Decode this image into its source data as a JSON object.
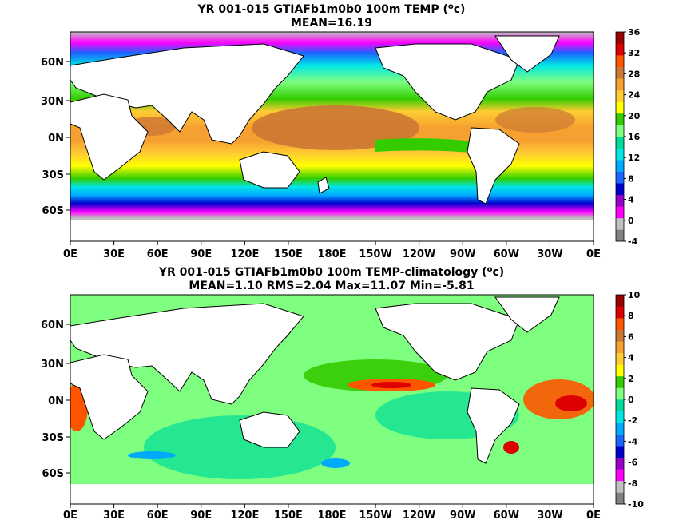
{
  "panels": [
    {
      "title_line1": "YR 001-015 GTIAFb1m0b0 100m TEMP (",
      "title_sup": "o",
      "title_line1_end": "c)",
      "title_line2": "MEAN=16.19",
      "lon_ticks": [
        "0E",
        "30E",
        "60E",
        "90E",
        "120E",
        "150E",
        "180E",
        "150W",
        "120W",
        "90W",
        "60W",
        "30W",
        "0E"
      ],
      "lat_ticks": [
        "60N",
        "30N",
        "0N",
        "30S",
        "60S"
      ],
      "colorbar": {
        "labels": [
          "36",
          "32",
          "28",
          "24",
          "20",
          "16",
          "12",
          "8",
          "4",
          "0",
          "-4"
        ],
        "colors": [
          "#808080",
          "#c0c0c0",
          "#ff00ff",
          "#9900cc",
          "#0000cd",
          "#1a66ff",
          "#00aaff",
          "#00e5e5",
          "#00dd99",
          "#7fff7f",
          "#33cc00",
          "#ffff00",
          "#ffcc33",
          "#f5a030",
          "#cc7733",
          "#ff5500",
          "#dd0000",
          "#990000"
        ]
      }
    },
    {
      "title_line1": "YR 001-015 GTIAFb1m0b0 100m TEMP-climatology (",
      "title_sup": "o",
      "title_line1_end": "c)",
      "title_line2": "MEAN=1.10   RMS=2.04   Max=11.07   Min=-5.81",
      "lon_ticks": [
        "0E",
        "30E",
        "60E",
        "90E",
        "120E",
        "150E",
        "180E",
        "150W",
        "120W",
        "90W",
        "60W",
        "30W",
        "0E"
      ],
      "lat_ticks": [
        "60N",
        "30N",
        "0N",
        "30S",
        "60S"
      ],
      "colorbar": {
        "labels": [
          "10",
          "8",
          "6",
          "4",
          "2",
          "0",
          "-2",
          "-4",
          "-6",
          "-8",
          "-10"
        ],
        "colors": [
          "#808080",
          "#c0c0c0",
          "#ff00ff",
          "#9900cc",
          "#0000cd",
          "#1a66ff",
          "#00aaff",
          "#00e5e5",
          "#00dd99",
          "#7fff7f",
          "#33cc00",
          "#ffff00",
          "#ffcc33",
          "#f5a030",
          "#cc7733",
          "#ff5500",
          "#dd0000",
          "#990000"
        ]
      }
    }
  ]
}
